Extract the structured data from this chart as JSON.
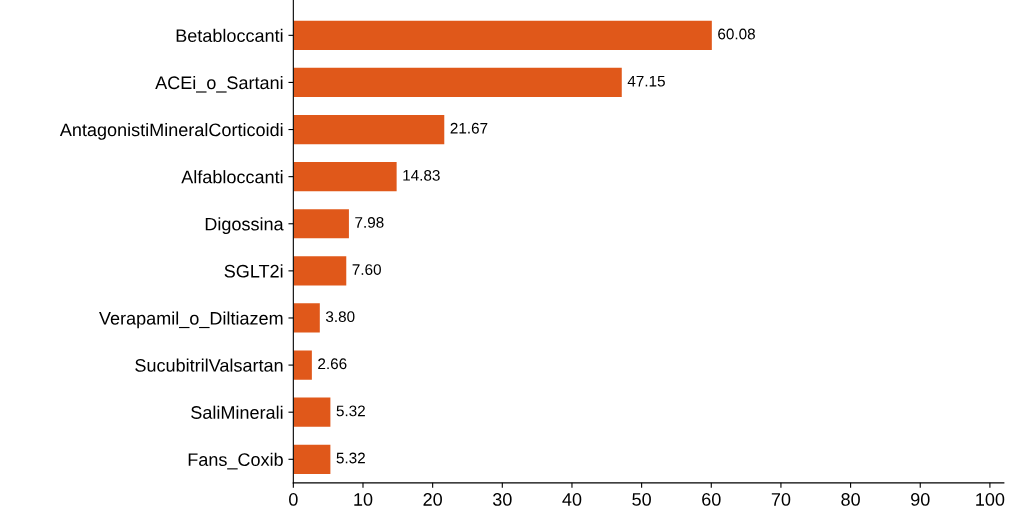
{
  "chart_data": {
    "type": "bar",
    "orientation": "horizontal",
    "categories": [
      "Betabloccanti",
      "ACEi_o_Sartani",
      "AntagonistiMineralCorticoidi",
      "Alfabloccanti",
      "Digossina",
      "SGLT2i",
      "Verapamil_o_Diltiazem",
      "SucubitrilValsartan",
      "SaliMinerali",
      "Fans_Coxib"
    ],
    "values": [
      60.08,
      47.15,
      21.67,
      14.83,
      7.98,
      7.6,
      3.8,
      2.66,
      5.32,
      5.32
    ],
    "value_labels": [
      "60.08",
      "47.15",
      "21.67",
      "14.83",
      "7.98",
      "7.60",
      "3.80",
      "2.66",
      "5.32",
      "5.32"
    ],
    "color": "#e0581a",
    "xlim": [
      0,
      102
    ],
    "xticks": [
      0,
      10,
      20,
      30,
      40,
      50,
      60,
      70,
      80,
      90,
      100
    ],
    "grid": false
  }
}
